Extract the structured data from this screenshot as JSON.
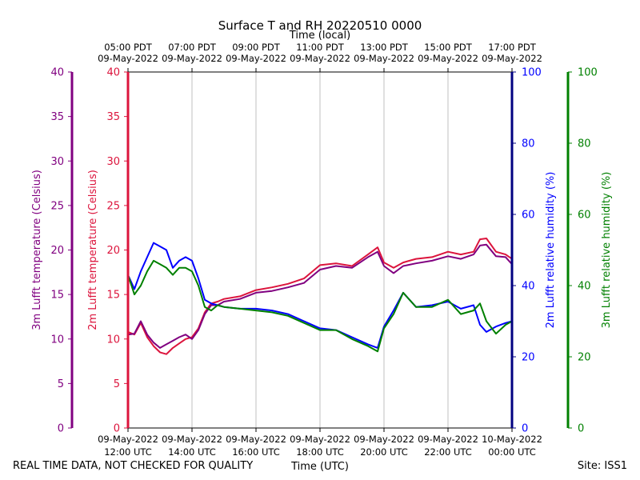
{
  "chart_data": {
    "type": "line",
    "title": "Surface T and RH 20220510 0000",
    "top_axis_title": "Time (local)",
    "xlabel": "Time (UTC)",
    "footer_left": "REAL TIME DATA, NOT CHECKED FOR QUALITY",
    "footer_right": "Site: ISS1",
    "x_range_hours_utc": [
      12,
      24
    ],
    "grid": "vertical",
    "utc_ticks": [
      {
        "hour": 12,
        "date": "09-May-2022",
        "time": "12:00 UTC"
      },
      {
        "hour": 14,
        "date": "09-May-2022",
        "time": "14:00 UTC"
      },
      {
        "hour": 16,
        "date": "09-May-2022",
        "time": "16:00 UTC"
      },
      {
        "hour": 18,
        "date": "09-May-2022",
        "time": "18:00 UTC"
      },
      {
        "hour": 20,
        "date": "09-May-2022",
        "time": "20:00 UTC"
      },
      {
        "hour": 22,
        "date": "09-May-2022",
        "time": "22:00 UTC"
      },
      {
        "hour": 24,
        "date": "10-May-2022",
        "time": "00:00 UTC"
      }
    ],
    "local_ticks": [
      {
        "hour": 12,
        "time": "05:00 PDT",
        "date": "09-May-2022"
      },
      {
        "hour": 14,
        "time": "07:00 PDT",
        "date": "09-May-2022"
      },
      {
        "hour": 16,
        "time": "09:00 PDT",
        "date": "09-May-2022"
      },
      {
        "hour": 18,
        "time": "11:00 PDT",
        "date": "09-May-2022"
      },
      {
        "hour": 20,
        "time": "13:00 PDT",
        "date": "09-May-2022"
      },
      {
        "hour": 22,
        "time": "15:00 PDT",
        "date": "09-May-2022"
      },
      {
        "hour": 24,
        "time": "17:00 PDT",
        "date": "09-May-2022"
      }
    ],
    "axes": [
      {
        "id": "t3",
        "label": "3m Lufft temperature (Celsius)",
        "color": "#800080",
        "range": [
          0,
          40
        ],
        "ticks": [
          0,
          5,
          10,
          15,
          20,
          25,
          30,
          35,
          40
        ]
      },
      {
        "id": "t2",
        "label": "2m Lufft temperature (Celsius)",
        "color": "#dc143c",
        "range": [
          0,
          40
        ],
        "ticks": [
          0,
          5,
          10,
          15,
          20,
          25,
          30,
          35,
          40
        ]
      },
      {
        "id": "rh2",
        "label": "2m Lufft relative humidity (%)",
        "color": "#0000ff",
        "axis_color": "#000080",
        "range": [
          0,
          100
        ],
        "ticks": [
          0,
          20,
          40,
          60,
          80,
          100
        ]
      },
      {
        "id": "rh3",
        "label": "3m Lufft relative humidity (%)",
        "color": "#008000",
        "range": [
          0,
          100
        ],
        "ticks": [
          0,
          20,
          40,
          60,
          80,
          100
        ]
      }
    ],
    "series": [
      {
        "name": "2m Lufft temperature",
        "axis": "t2",
        "color": "#dc143c",
        "x": [
          12.0,
          12.2,
          12.4,
          12.6,
          12.8,
          13.0,
          13.2,
          13.4,
          13.6,
          13.8,
          14.0,
          14.2,
          14.4,
          14.6,
          14.8,
          15.0,
          15.5,
          16.0,
          16.5,
          17.0,
          17.5,
          18.0,
          18.5,
          19.0,
          19.5,
          19.8,
          20.0,
          20.3,
          20.6,
          21.0,
          21.5,
          22.0,
          22.4,
          22.8,
          23.0,
          23.2,
          23.5,
          23.8,
          24.0
        ],
        "values": [
          10.8,
          10.5,
          11.8,
          10.2,
          9.2,
          8.5,
          8.3,
          9.0,
          9.5,
          10.0,
          10.2,
          11.2,
          13.0,
          14.0,
          14.2,
          14.5,
          14.8,
          15.5,
          15.8,
          16.2,
          16.8,
          18.3,
          18.5,
          18.2,
          19.5,
          20.3,
          18.6,
          18.0,
          18.6,
          19.0,
          19.2,
          19.8,
          19.5,
          19.8,
          21.2,
          21.3,
          19.8,
          19.5,
          19.0
        ]
      },
      {
        "name": "3m Lufft temperature",
        "axis": "t3",
        "color": "#800080",
        "x": [
          12.0,
          12.2,
          12.4,
          12.6,
          12.8,
          13.0,
          13.2,
          13.4,
          13.6,
          13.8,
          14.0,
          14.2,
          14.4,
          14.6,
          14.8,
          15.0,
          15.5,
          16.0,
          16.5,
          17.0,
          17.5,
          18.0,
          18.5,
          19.0,
          19.5,
          19.8,
          20.0,
          20.3,
          20.6,
          21.0,
          21.5,
          22.0,
          22.4,
          22.8,
          23.0,
          23.2,
          23.5,
          23.8,
          24.0
        ],
        "values": [
          10.5,
          10.6,
          12.0,
          10.5,
          9.6,
          9.0,
          9.4,
          9.8,
          10.2,
          10.5,
          10.0,
          11.0,
          12.8,
          13.8,
          13.8,
          14.2,
          14.5,
          15.2,
          15.4,
          15.8,
          16.3,
          17.8,
          18.2,
          18.0,
          19.2,
          19.8,
          18.2,
          17.4,
          18.2,
          18.5,
          18.8,
          19.3,
          19.0,
          19.5,
          20.5,
          20.6,
          19.3,
          19.2,
          18.4
        ]
      },
      {
        "name": "2m Lufft relative humidity",
        "axis": "rh2",
        "color": "#0000ff",
        "x": [
          12.0,
          12.2,
          12.4,
          12.6,
          12.8,
          13.0,
          13.2,
          13.4,
          13.6,
          13.8,
          14.0,
          14.2,
          14.4,
          14.6,
          14.8,
          15.0,
          15.5,
          16.0,
          16.5,
          17.0,
          17.5,
          18.0,
          18.5,
          19.0,
          19.5,
          19.8,
          20.0,
          20.3,
          20.6,
          21.0,
          21.5,
          22.0,
          22.4,
          22.8,
          23.0,
          23.2,
          23.5,
          23.8,
          24.0
        ],
        "values": [
          43.0,
          39.0,
          44.0,
          48.0,
          52.0,
          51.0,
          50.0,
          45.0,
          47.0,
          48.0,
          47.0,
          42.0,
          36.0,
          35.0,
          34.5,
          34.0,
          33.5,
          33.5,
          33.0,
          32.0,
          30.0,
          28.0,
          27.5,
          25.5,
          23.5,
          22.5,
          28.5,
          33.0,
          38.0,
          34.0,
          34.5,
          35.5,
          33.5,
          34.5,
          29.0,
          27.0,
          28.5,
          29.5,
          30.0
        ]
      },
      {
        "name": "3m Lufft relative humidity",
        "axis": "rh3",
        "color": "#008000",
        "x": [
          12.0,
          12.2,
          12.4,
          12.6,
          12.8,
          13.0,
          13.2,
          13.4,
          13.6,
          13.8,
          14.0,
          14.2,
          14.4,
          14.6,
          14.8,
          15.0,
          15.5,
          16.0,
          16.5,
          17.0,
          17.5,
          18.0,
          18.5,
          19.0,
          19.5,
          19.8,
          20.0,
          20.3,
          20.6,
          21.0,
          21.5,
          22.0,
          22.4,
          22.8,
          23.0,
          23.2,
          23.5,
          23.8,
          24.0
        ],
        "values": [
          43.0,
          37.5,
          40.0,
          44.0,
          47.0,
          46.0,
          45.0,
          43.0,
          45.0,
          45.0,
          44.0,
          40.0,
          34.0,
          33.0,
          34.5,
          34.0,
          33.5,
          33.0,
          32.5,
          31.5,
          29.5,
          27.5,
          27.5,
          25.0,
          23.0,
          21.5,
          28.0,
          32.0,
          38.0,
          34.0,
          34.0,
          36.0,
          32.0,
          33.0,
          35.0,
          30.0,
          26.5,
          29.0,
          30.0
        ]
      }
    ]
  }
}
